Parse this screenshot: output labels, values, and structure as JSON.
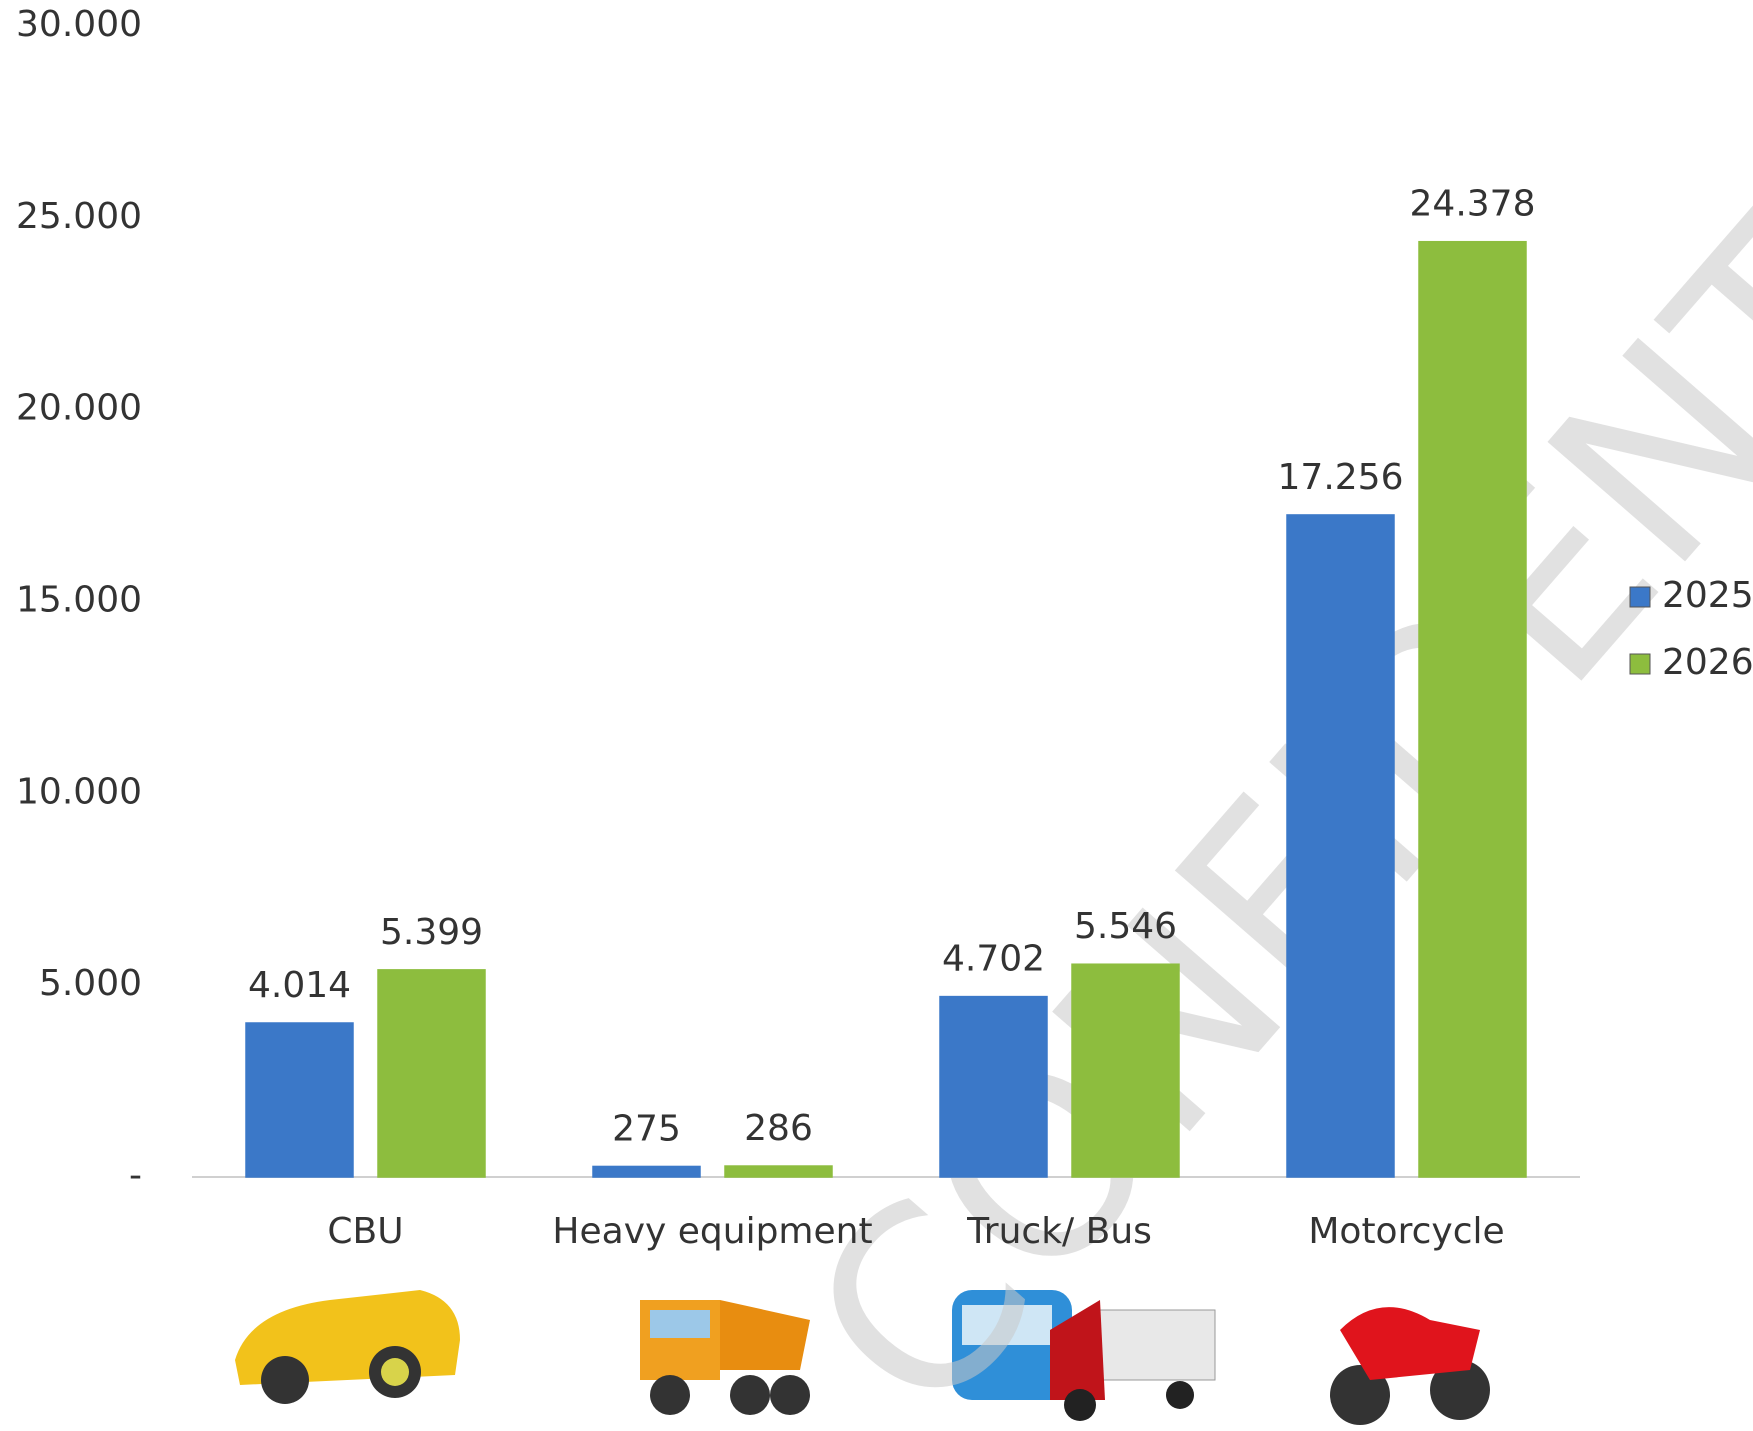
{
  "chart_data": {
    "type": "bar",
    "categories": [
      "CBU",
      "Heavy equipment",
      "Truck/ Bus",
      "Motorcycle"
    ],
    "series": [
      {
        "name": "2025",
        "color": "#3b78c8",
        "values": [
          4014,
          275,
          4702,
          17256
        ],
        "value_labels": [
          "4.014",
          "275",
          "4.702",
          "17.256"
        ]
      },
      {
        "name": "2026",
        "color": "#8dbd3e",
        "values": [
          5399,
          286,
          5546,
          24378
        ],
        "value_labels": [
          "5.399",
          "286",
          "5.546",
          "24.378"
        ]
      }
    ],
    "ylim": [
      0,
      30000
    ],
    "yticks": [
      {
        "value": 0,
        "label": "-"
      },
      {
        "value": 5000,
        "label": "5.000"
      },
      {
        "value": 10000,
        "label": "10.000"
      },
      {
        "value": 15000,
        "label": "15.000"
      },
      {
        "value": 20000,
        "label": "20.000"
      },
      {
        "value": 25000,
        "label": "25.000"
      },
      {
        "value": 30000,
        "label": "30.000"
      }
    ],
    "grid": false,
    "legend": "right",
    "watermark": "CONFIDENTIAL"
  }
}
